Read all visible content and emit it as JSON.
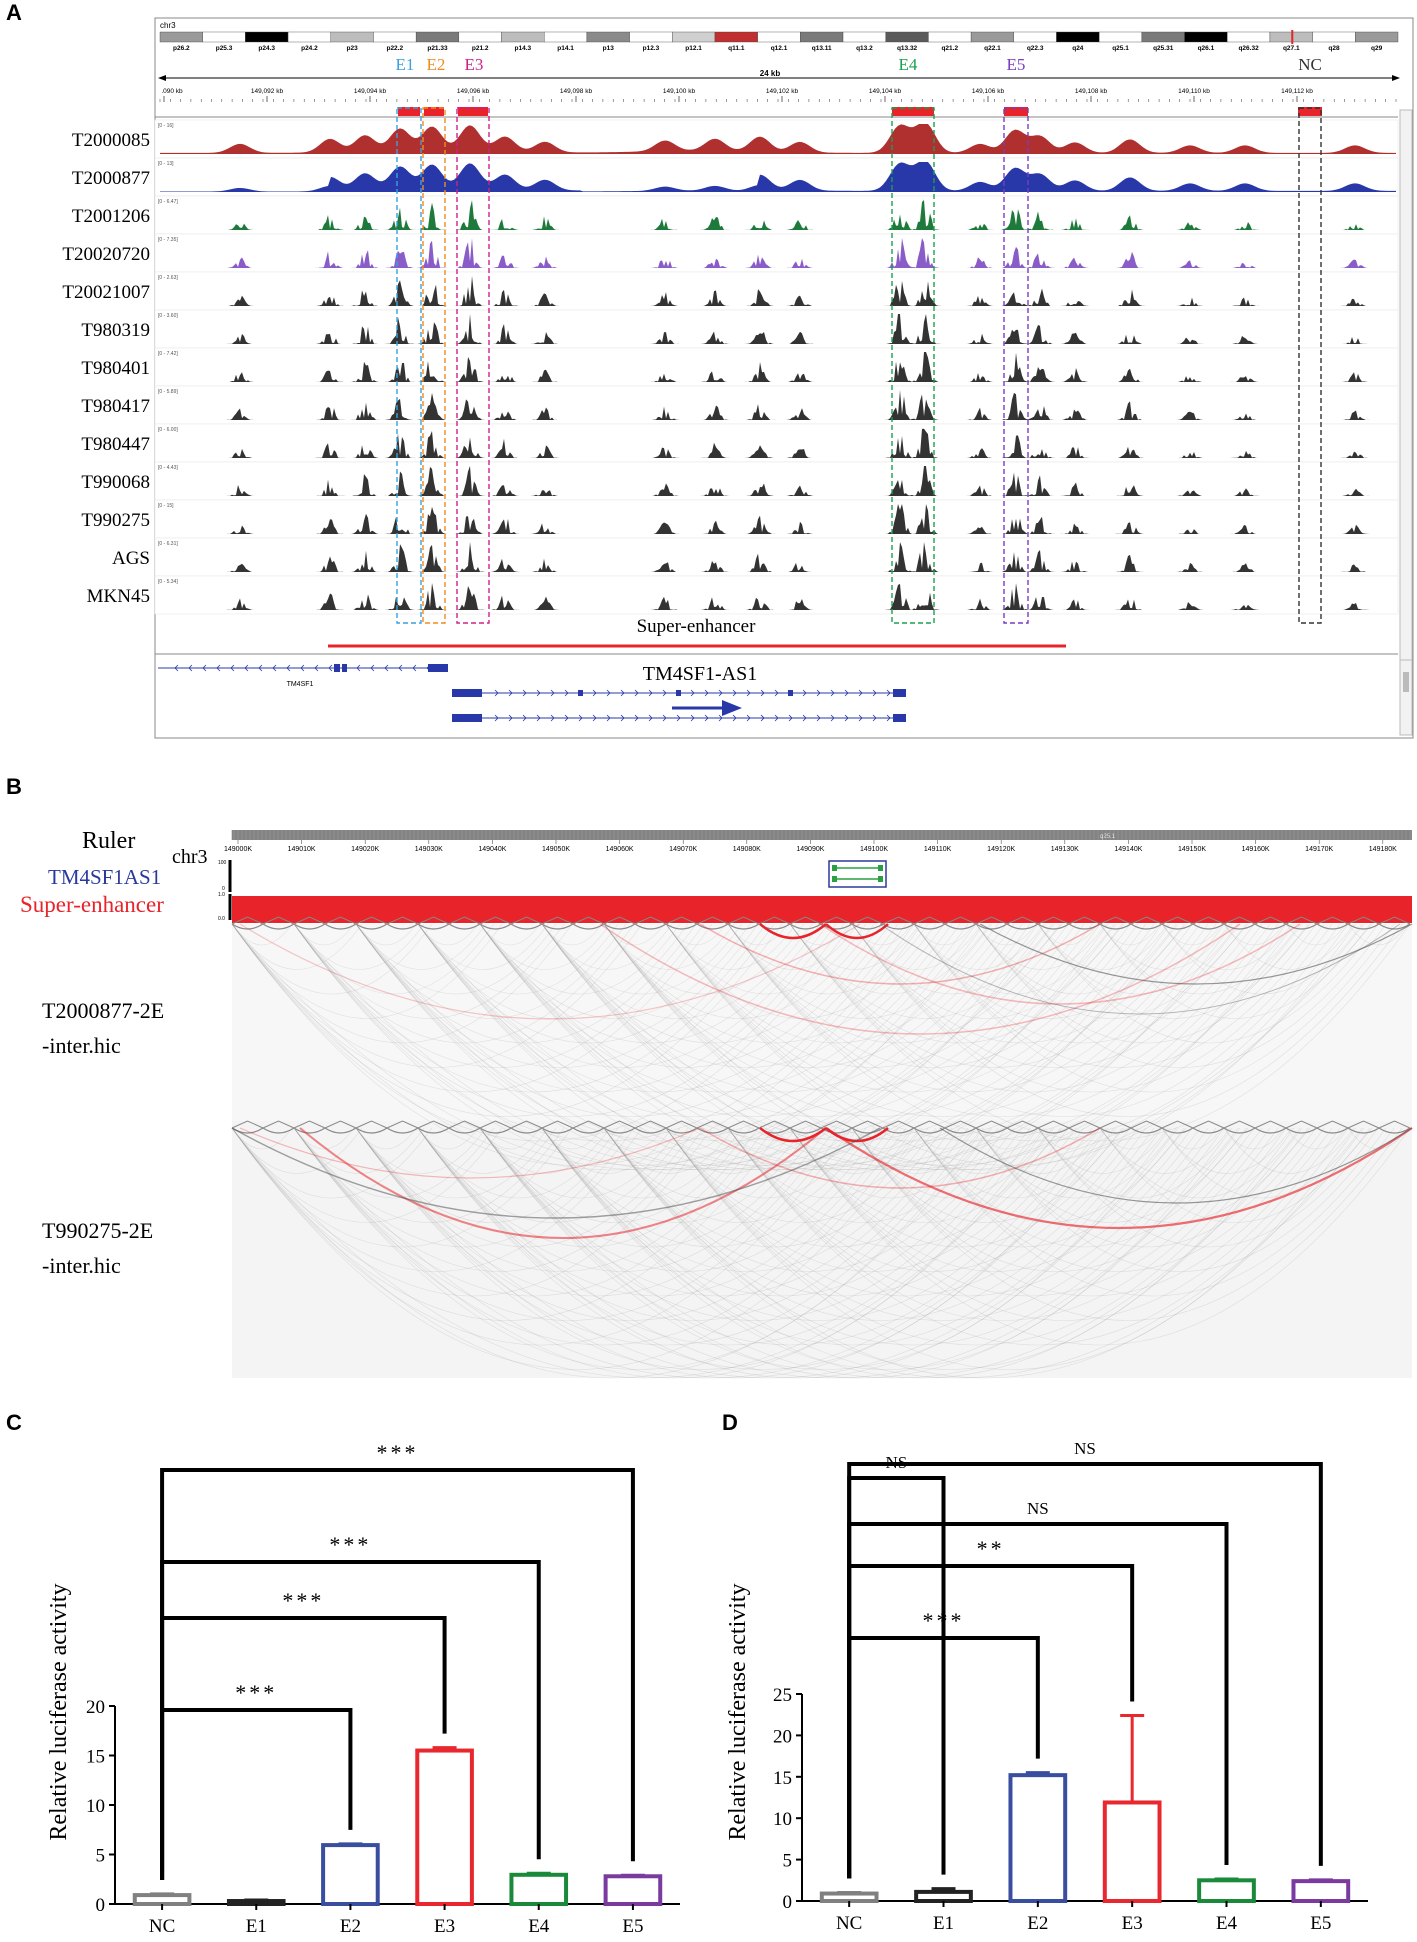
{
  "figure": {
    "panel_labels": [
      "A",
      "B",
      "C",
      "D"
    ]
  },
  "panel_a": {
    "chromosome": "chr3",
    "cytobands": [
      "p26.2",
      "p25.3",
      "p24.3",
      "p24.2",
      "p23",
      "p22.2",
      "p21.33",
      "p21.2",
      "p14.3",
      "p14.1",
      "p13",
      "p12.3",
      "p12.1",
      "q11.1",
      "q12.1",
      "q13.11",
      "q13.2",
      "q13.32",
      "q21.2",
      "q22.1",
      "q22.3",
      "q24",
      "q25.1",
      "q25.31",
      "q26.1",
      "q26.32",
      "q27.1",
      "q28",
      "q29"
    ],
    "scale_label": "24 kb",
    "positions": [
      ".090 kb",
      "149,092 kb",
      "149,094 kb",
      "149,096 kb",
      "149,098 kb",
      "149,100 kb",
      "149,102 kb",
      "149,104 kb",
      "149,106 kb",
      "149,108 kb",
      "149,110 kb",
      "149,112 kb"
    ],
    "enhancer_labels": [
      {
        "name": "E1",
        "color": "#3aa0e0"
      },
      {
        "name": "E2",
        "color": "#f08c1e"
      },
      {
        "name": "E3",
        "color": "#d0208c"
      },
      {
        "name": "E4",
        "color": "#1aa050"
      },
      {
        "name": "E5",
        "color": "#7a3cc0"
      },
      {
        "name": "NC",
        "color": "#333333"
      }
    ],
    "tracks": [
      {
        "name": "T2000085",
        "range": "[0 - 16]",
        "color": "#b03030"
      },
      {
        "name": "T2000877",
        "range": "[0 - 13]",
        "color": "#2838a8"
      },
      {
        "name": "T2001206",
        "range": "[0 - 6.47]",
        "color": "#1e7a3a"
      },
      {
        "name": "T20020720",
        "range": "[0 - 7.35]",
        "color": "#8a5cc8"
      },
      {
        "name": "T20021007",
        "range": "[0 - 2.63]",
        "color": "#333333"
      },
      {
        "name": "T980319",
        "range": "[0 - 3.60]",
        "color": "#333333"
      },
      {
        "name": "T980401",
        "range": "[0 - 7.42]",
        "color": "#333333"
      },
      {
        "name": "T980417",
        "range": "[0 - 5.89]",
        "color": "#333333"
      },
      {
        "name": "T980447",
        "range": "[0 - 6.00]",
        "color": "#333333"
      },
      {
        "name": "T990068",
        "range": "[0 - 4.43]",
        "color": "#333333"
      },
      {
        "name": "T990275",
        "range": "[0 - 15]",
        "color": "#333333"
      },
      {
        "name": "AGS",
        "range": "[0 - 6.31]",
        "color": "#333333"
      },
      {
        "name": "MKN45",
        "range": "[0 - 5.34]",
        "color": "#333333"
      }
    ],
    "super_enhancer_label": "Super-enhancer",
    "gene_small": "TM4SF1",
    "gene_large": "TM4SF1-AS1"
  },
  "panel_b": {
    "ruler_label": "Ruler",
    "chrom_label": "chr3",
    "band_label": "q25.1",
    "gene_label": "TM4SF1AS1",
    "se_label": "Super-enhancer",
    "ticks": [
      "149000K",
      "149010K",
      "149020K",
      "149030K",
      "149040K",
      "149050K",
      "149060K",
      "149070K",
      "149080K",
      "149090K",
      "149100K",
      "149110K",
      "149120K",
      "149130K",
      "149140K",
      "149150K",
      "149160K",
      "149170K",
      "149180K"
    ],
    "gene_scale": [
      "100",
      "0"
    ],
    "se_scale": [
      "1.0",
      "0.0"
    ],
    "hic_tracks": [
      {
        "line1": "T2000877-2E",
        "line2": "-inter.hic"
      },
      {
        "line1": "T990275-2E",
        "line2": "-inter.hic"
      }
    ]
  },
  "chart_data": [
    {
      "type": "bar",
      "panel": "C",
      "categories": [
        "NC",
        "E1",
        "E2",
        "E3",
        "E4",
        "E5"
      ],
      "values": [
        0.9,
        0.3,
        5.95,
        15.5,
        2.95,
        2.8
      ],
      "errors": [
        0.12,
        0.1,
        0.12,
        0.3,
        0.15,
        0.1
      ],
      "colors": [
        "#808080",
        "#222222",
        "#3a4ea0",
        "#e8282e",
        "#1a8a3a",
        "#7a3aa0"
      ],
      "ylabel": "Relative luciferase activity",
      "xlabel": "",
      "ylim": [
        0,
        20
      ],
      "yticks": [
        0,
        5,
        10,
        15,
        20
      ],
      "comparisons": [
        {
          "to": "E2",
          "label": "***"
        },
        {
          "to": "E3",
          "label": "***"
        },
        {
          "to": "E4",
          "label": "***"
        },
        {
          "to": "E5",
          "label": "***"
        }
      ]
    },
    {
      "type": "bar",
      "panel": "D",
      "categories": [
        "NC",
        "E1",
        "E2",
        "E3",
        "E4",
        "E5"
      ],
      "values": [
        0.9,
        1.1,
        15.2,
        11.9,
        2.5,
        2.4
      ],
      "errors": [
        0.12,
        0.4,
        0.3,
        10.5,
        0.15,
        0.15
      ],
      "colors": [
        "#808080",
        "#222222",
        "#3a4ea0",
        "#e8282e",
        "#1a8a3a",
        "#7a3aa0"
      ],
      "ylabel": "Relative luciferase activity",
      "xlabel": "",
      "ylim": [
        0,
        25
      ],
      "yticks": [
        0,
        5,
        10,
        15,
        20,
        25
      ],
      "comparisons": [
        {
          "to": "E1",
          "label": "NS"
        },
        {
          "to": "E2",
          "label": "***"
        },
        {
          "to": "E3",
          "label": "**"
        },
        {
          "to": "E4",
          "label": "NS"
        },
        {
          "to": "E5",
          "label": "NS"
        }
      ]
    }
  ]
}
